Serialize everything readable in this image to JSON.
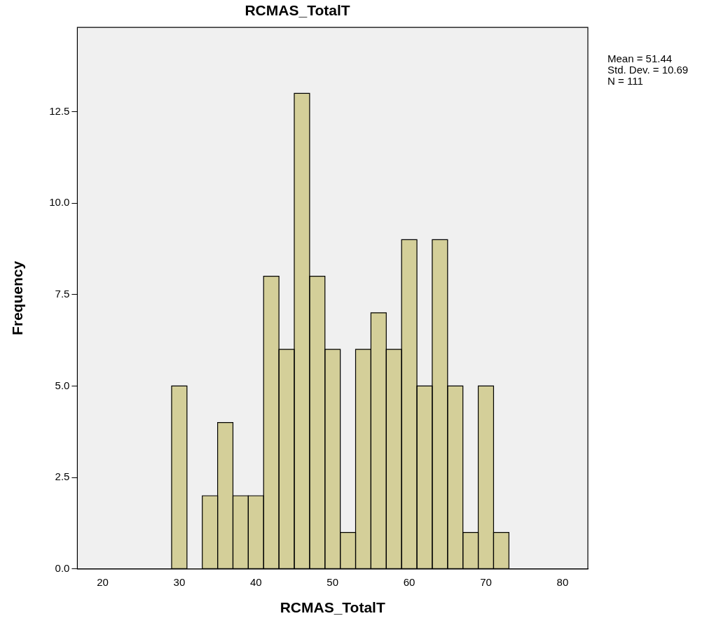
{
  "chart_data": {
    "type": "histogram",
    "title": "RCMAS_TotalT",
    "xlabel": "RCMAS_TotalT",
    "ylabel": "Frequency",
    "bins": [
      29,
      31,
      33,
      35,
      37,
      39,
      41,
      43,
      45,
      47,
      49,
      51,
      53,
      55,
      57,
      59,
      61,
      63,
      65,
      67,
      69,
      71,
      73
    ],
    "values": [
      5,
      0,
      2,
      4,
      2,
      2,
      8,
      6,
      13,
      8,
      6,
      1,
      6,
      7,
      6,
      9,
      5,
      9,
      5,
      1,
      5,
      1
    ],
    "color": "#d4cf99",
    "xlim": [
      16.7,
      83.3
    ],
    "xticks": [
      20,
      30,
      40,
      50,
      60,
      70,
      80
    ],
    "ylim": [
      0,
      14.8
    ],
    "yticks": [
      {
        "value": 0,
        "label": "0.0"
      },
      {
        "value": 2.5,
        "label": "2.5"
      },
      {
        "value": 5,
        "label": "5.0"
      },
      {
        "value": 7.5,
        "label": "7.5"
      },
      {
        "value": 10,
        "label": "10.0"
      },
      {
        "value": 12.5,
        "label": "12.5"
      }
    ],
    "grid": false,
    "annotations": [
      "Mean = 51.44",
      "Std. Dev. = 10.69",
      "N = 111"
    ]
  }
}
